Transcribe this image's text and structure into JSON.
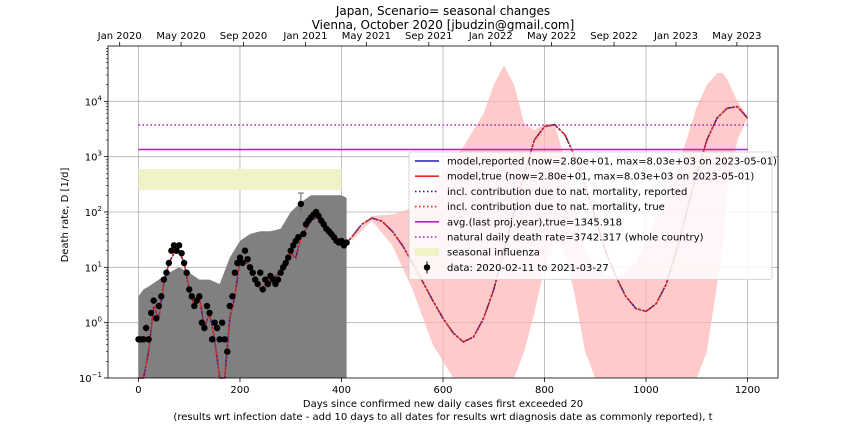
{
  "chart_data": {
    "type": "line",
    "title": "Japan, Scenario= seasonal changes",
    "subtitle": "Vienna, October 2020 [jbudzin@gmail.com]",
    "xlabel": "Days since confirmed new daily cases first exceeded 20",
    "xlabel2": "(results wrt infection date - add 10 days to all dates for results wrt diagnosis date as commonly reported), t",
    "ylabel": "Death rate, D [1/d]",
    "y_scale": "log",
    "xlim": [
      -60,
      1260
    ],
    "ylim": [
      0.1,
      100000
    ],
    "grid": true,
    "x_ticks": [
      0,
      200,
      400,
      600,
      800,
      1000,
      1200
    ],
    "y_ticks": [
      {
        "value": 0.1,
        "base": "10",
        "exp": "−1"
      },
      {
        "value": 1,
        "base": "10",
        "exp": "0"
      },
      {
        "value": 10,
        "base": "10",
        "exp": "1"
      },
      {
        "value": 100,
        "base": "10",
        "exp": "2"
      },
      {
        "value": 1000,
        "base": "10",
        "exp": "3"
      },
      {
        "value": 10000,
        "base": "10",
        "exp": "4"
      }
    ],
    "top_axis_dates": [
      {
        "day": -37,
        "label": "Jan 2020"
      },
      {
        "day": 84,
        "label": "May 2020"
      },
      {
        "day": 207,
        "label": "Sep 2020"
      },
      {
        "day": 329,
        "label": "Jan 2021"
      },
      {
        "day": 449,
        "label": "May 2021"
      },
      {
        "day": 572,
        "label": "Sep 2021"
      },
      {
        "day": 694,
        "label": "Jan 2022"
      },
      {
        "day": 814,
        "label": "May 2022"
      },
      {
        "day": 937,
        "label": "Sep 2022"
      },
      {
        "day": 1059,
        "label": "Jan 2023"
      },
      {
        "day": 1179,
        "label": "May 2023"
      }
    ],
    "legend_position": "center-right",
    "series": [
      {
        "name": "model,reported (now=2.80e+01, max=8.03e+03 on 2023-05-01)",
        "color": "#1f1fb0",
        "style": "solid"
      },
      {
        "name": "model,true (now=2.80e+01, max=8.03e+03 on 2023-05-01)",
        "color": "#e8291c",
        "style": "solid"
      },
      {
        "name": "incl. contribution due to nat. mortality, reported",
        "color": "#1f1fb0",
        "style": "dotted"
      },
      {
        "name": "incl. contribution due to nat. mortality, true",
        "color": "#e8291c",
        "style": "dotted"
      },
      {
        "name": "avg.(last proj.year),true=1345.918",
        "color": "#b020c0",
        "style": "solid",
        "value": 1345.918
      },
      {
        "name": "natural daily death rate=3742.317 (whole country)",
        "color": "#b020c0",
        "style": "dotted",
        "value": 3742.317
      },
      {
        "name": "seasonal influenza",
        "color": "#f2f2c8",
        "style": "band",
        "range": [
          250,
          600
        ]
      },
      {
        "name": "data: 2020-02-11 to 2021-03-27",
        "color": "#000000",
        "style": "marker"
      }
    ],
    "model_curve": {
      "day": [
        0,
        10,
        20,
        30,
        40,
        50,
        60,
        70,
        80,
        90,
        100,
        110,
        120,
        130,
        140,
        150,
        160,
        170,
        180,
        190,
        200,
        210,
        220,
        230,
        240,
        250,
        260,
        270,
        280,
        290,
        300,
        310,
        320,
        330,
        340,
        350,
        360,
        370,
        380,
        390,
        400,
        410,
        420,
        440,
        460,
        480,
        500,
        520,
        540,
        560,
        580,
        600,
        620,
        640,
        660,
        680,
        700,
        720,
        740,
        760,
        780,
        800,
        820,
        840,
        860,
        880,
        900,
        920,
        940,
        960,
        980,
        1000,
        1020,
        1040,
        1060,
        1080,
        1100,
        1120,
        1140,
        1160,
        1180,
        1200
      ],
      "value": [
        0.05,
        0.05,
        0.3,
        2,
        1.2,
        5,
        12,
        18,
        20,
        12,
        4,
        2,
        3,
        0.8,
        1.5,
        0.5,
        0.03,
        0.05,
        1.2,
        3,
        14,
        13,
        10,
        6,
        4,
        5,
        6,
        7,
        8,
        10,
        18,
        15,
        35,
        50,
        70,
        80,
        70,
        55,
        45,
        35,
        30,
        28,
        35,
        60,
        78,
        68,
        45,
        25,
        12,
        5.5,
        2.5,
        1.2,
        0.65,
        0.45,
        0.55,
        1.2,
        4,
        20,
        100,
        500,
        2000,
        3500,
        3800,
        2500,
        1000,
        300,
        80,
        20,
        7,
        3,
        1.8,
        1.6,
        2.2,
        5,
        20,
        100,
        500,
        2000,
        5000,
        7500,
        8030,
        5000
      ]
    },
    "uncertainty_band": {
      "day": [
        420,
        460,
        500,
        540,
        580,
        620,
        640,
        680,
        700,
        720,
        740,
        760,
        780,
        800,
        820,
        840,
        860,
        880,
        900,
        940,
        980,
        1000,
        1040,
        1080,
        1100,
        1120,
        1140,
        1150,
        1160,
        1180,
        1200
      ],
      "lower": [
        30,
        70,
        25,
        4,
        0.4,
        0.1,
        0.1,
        0.1,
        0.1,
        0.1,
        0.1,
        0.3,
        1.5,
        10,
        30,
        20,
        3,
        0.3,
        0.1,
        0.1,
        0.1,
        0.1,
        0.1,
        0.1,
        0.1,
        0.3,
        5,
        20,
        200,
        2000,
        5000
      ],
      "upper": [
        35,
        85,
        90,
        120,
        250,
        900,
        1500,
        6000,
        20000,
        45000,
        20000,
        4000,
        3000,
        3900,
        3800,
        900,
        150,
        20,
        10,
        6,
        12,
        30,
        200,
        2000,
        8000,
        20000,
        32000,
        33000,
        25000,
        10000,
        5500
      ]
    },
    "data_range_band": {
      "day": [
        0,
        10,
        20,
        40,
        60,
        80,
        100,
        120,
        140,
        160,
        180,
        200,
        220,
        240,
        260,
        280,
        300,
        320,
        340,
        360,
        380,
        400,
        410
      ],
      "upper": [
        3,
        4,
        4.5,
        6,
        8,
        10,
        8,
        6,
        6,
        5,
        15,
        30,
        40,
        45,
        45,
        50,
        100,
        150,
        200,
        200,
        200,
        200,
        180
      ]
    },
    "data_points": {
      "day": [
        0,
        5,
        10,
        15,
        20,
        25,
        30,
        35,
        40,
        45,
        50,
        55,
        60,
        65,
        70,
        75,
        80,
        85,
        90,
        95,
        100,
        105,
        110,
        115,
        120,
        125,
        130,
        135,
        140,
        145,
        150,
        155,
        160,
        165,
        170,
        175,
        180,
        185,
        190,
        195,
        200,
        205,
        210,
        215,
        220,
        225,
        230,
        235,
        240,
        245,
        250,
        255,
        260,
        265,
        270,
        275,
        280,
        285,
        290,
        295,
        300,
        305,
        310,
        315,
        320,
        325,
        330,
        335,
        340,
        345,
        350,
        355,
        360,
        365,
        370,
        375,
        380,
        385,
        390,
        395,
        400,
        405,
        410
      ],
      "value": [
        0.5,
        0.5,
        0.5,
        0.8,
        0.5,
        1.5,
        2.5,
        1.2,
        2,
        3,
        6,
        8,
        12,
        20,
        25,
        20,
        25,
        18,
        12,
        8,
        4,
        3,
        2,
        2.5,
        3,
        1,
        0.8,
        2,
        1.5,
        0.5,
        1,
        0.8,
        0.5,
        1,
        0.5,
        0.3,
        2,
        3,
        8,
        12,
        15,
        12,
        20,
        14,
        10,
        8,
        6,
        5,
        8,
        4,
        6,
        5,
        7,
        6,
        5,
        6,
        8,
        10,
        12,
        15,
        20,
        25,
        30,
        35,
        140,
        40,
        60,
        70,
        80,
        90,
        100,
        85,
        70,
        60,
        50,
        45,
        40,
        35,
        30,
        28,
        30,
        25,
        28
      ]
    },
    "data_errorbar": {
      "day": 320,
      "value": 140,
      "low": 95,
      "high": 220
    }
  }
}
